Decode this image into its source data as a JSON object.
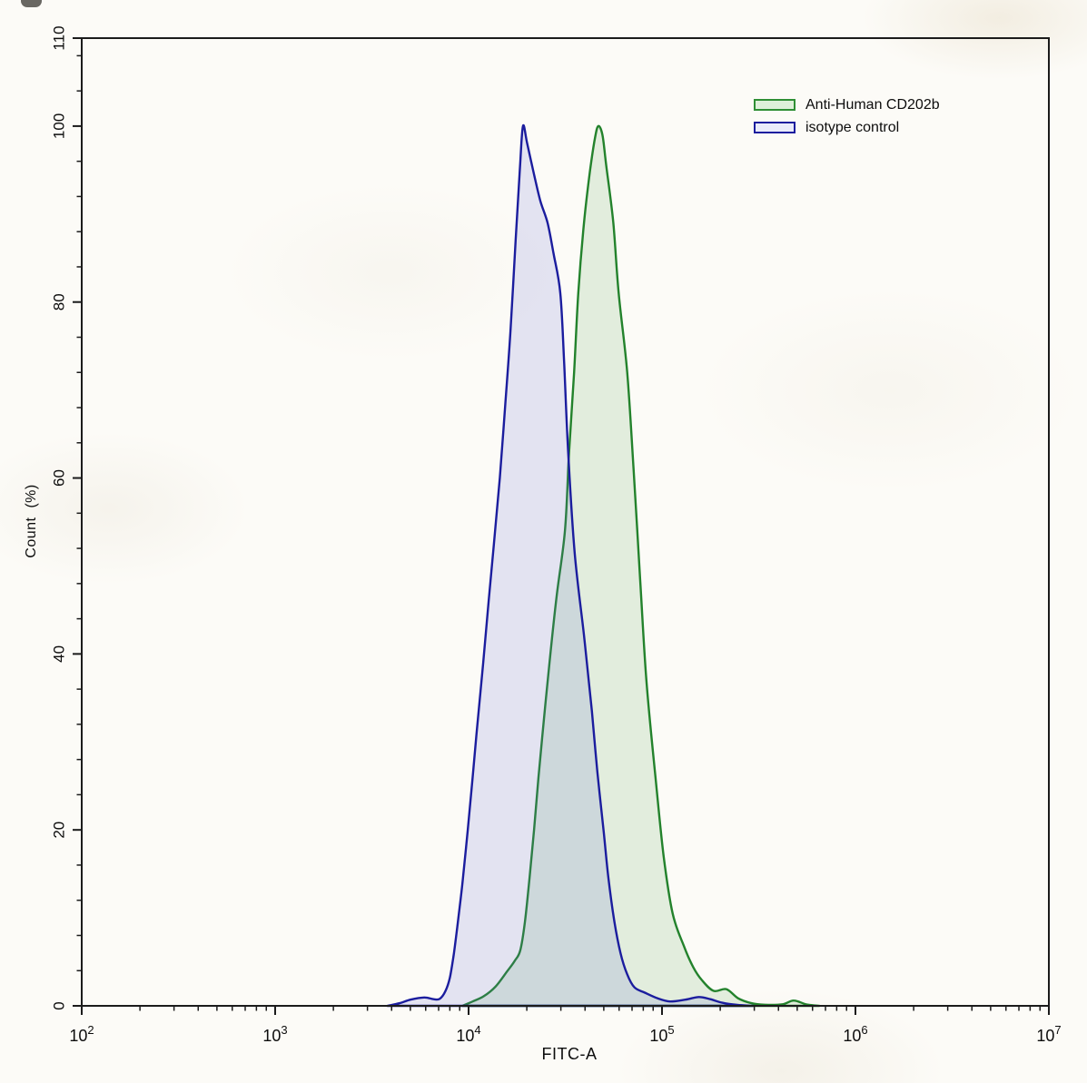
{
  "figure": {
    "background": "#fcfbf7",
    "axis_color": "#1b1b1b",
    "text_color": "#0d0d0d"
  },
  "chart_data": {
    "type": "area",
    "subtype": "flow-cytometry-histogram-overlay",
    "title": "",
    "xlabel": "FITC-A",
    "ylabel": "Count  (%)",
    "x_scale": "log10",
    "x_range": [
      100,
      10000000
    ],
    "x_major_tick_exponents": [
      2,
      3,
      4,
      5,
      6,
      7
    ],
    "x_minor_tick_multipliers": [
      2,
      3,
      4,
      5,
      6,
      7,
      8,
      9
    ],
    "y_range": [
      0,
      110
    ],
    "y_major_ticks": [
      0,
      20,
      40,
      60,
      80,
      100,
      110
    ],
    "y_minor_step": 4,
    "grid": false,
    "legend_position": "top-right",
    "legend": [
      {
        "label": "Anti-Human CD202b",
        "stroke": "#2f8f35",
        "fill": "#def0da"
      },
      {
        "label": "isotype control",
        "stroke": "#1b1d9e",
        "fill": "#e9ebfa"
      }
    ],
    "series": [
      {
        "name": "Anti-Human CD202b",
        "stroke": "#23822c",
        "fill": "rgba(110,180,105,0.18)",
        "peak_x": 46800,
        "peak_y": 100,
        "points": [
          [
            9300,
            0
          ],
          [
            10500,
            0.5
          ],
          [
            12000,
            1.1
          ],
          [
            13800,
            2.2
          ],
          [
            15800,
            3.9
          ],
          [
            17300,
            5.1
          ],
          [
            18500,
            6.3
          ],
          [
            19550,
            9.5
          ],
          [
            20650,
            14.5
          ],
          [
            21800,
            20
          ],
          [
            23000,
            26
          ],
          [
            24500,
            32.5
          ],
          [
            26200,
            39
          ],
          [
            28500,
            46.5
          ],
          [
            31500,
            54
          ],
          [
            33000,
            62.5
          ],
          [
            35100,
            72
          ],
          [
            36900,
            81
          ],
          [
            39500,
            89
          ],
          [
            42500,
            95
          ],
          [
            45000,
            98.6
          ],
          [
            46800,
            100
          ],
          [
            49200,
            99
          ],
          [
            51500,
            95.5
          ],
          [
            56000,
            89
          ],
          [
            59700,
            81
          ],
          [
            66100,
            72
          ],
          [
            71300,
            61
          ],
          [
            77100,
            48.5
          ],
          [
            83000,
            37
          ],
          [
            92500,
            26
          ],
          [
            102000,
            17
          ],
          [
            113500,
            10.5
          ],
          [
            129700,
            6.8
          ],
          [
            145000,
            4.4
          ],
          [
            161000,
            2.9
          ],
          [
            185000,
            1.7
          ],
          [
            215000,
            1.9
          ],
          [
            248000,
            0.85
          ],
          [
            290000,
            0.3
          ],
          [
            340000,
            0.12
          ],
          [
            420000,
            0.18
          ],
          [
            480000,
            0.6
          ],
          [
            560000,
            0.15
          ],
          [
            650000,
            0
          ]
        ]
      },
      {
        "name": "isotype control",
        "stroke": "#1b1d9e",
        "fill": "rgba(100,105,210,0.16)",
        "peak_x": 19100,
        "peak_y": 100,
        "points": [
          [
            3800,
            0
          ],
          [
            4400,
            0.3
          ],
          [
            5000,
            0.7
          ],
          [
            5900,
            0.95
          ],
          [
            6600,
            0.75
          ],
          [
            7100,
            0.8
          ],
          [
            7600,
            1.7
          ],
          [
            8000,
            3.2
          ],
          [
            8400,
            6
          ],
          [
            8800,
            9.5
          ],
          [
            9300,
            14
          ],
          [
            9900,
            20
          ],
          [
            10500,
            26
          ],
          [
            11000,
            31
          ],
          [
            11900,
            39
          ],
          [
            12700,
            46
          ],
          [
            13500,
            52.4
          ],
          [
            14500,
            60
          ],
          [
            15500,
            68.5
          ],
          [
            16500,
            77
          ],
          [
            17500,
            87
          ],
          [
            18400,
            95
          ],
          [
            19100,
            100
          ],
          [
            20100,
            98
          ],
          [
            21800,
            94.5
          ],
          [
            23500,
            91.5
          ],
          [
            25600,
            89
          ],
          [
            27500,
            85.5
          ],
          [
            29800,
            81
          ],
          [
            31200,
            73
          ],
          [
            32800,
            62.5
          ],
          [
            35400,
            51.4
          ],
          [
            39500,
            42.1
          ],
          [
            43400,
            33.5
          ],
          [
            46300,
            26.6
          ],
          [
            50000,
            19.7
          ],
          [
            52800,
            14.6
          ],
          [
            56500,
            9.8
          ],
          [
            61000,
            6
          ],
          [
            66000,
            3.6
          ],
          [
            72000,
            2.1
          ],
          [
            81500,
            1.5
          ],
          [
            95000,
            0.85
          ],
          [
            110000,
            0.5
          ],
          [
            132000,
            0.7
          ],
          [
            155000,
            1.0
          ],
          [
            178000,
            0.75
          ],
          [
            205000,
            0.35
          ],
          [
            245000,
            0.1
          ],
          [
            295000,
            0
          ]
        ]
      }
    ]
  }
}
